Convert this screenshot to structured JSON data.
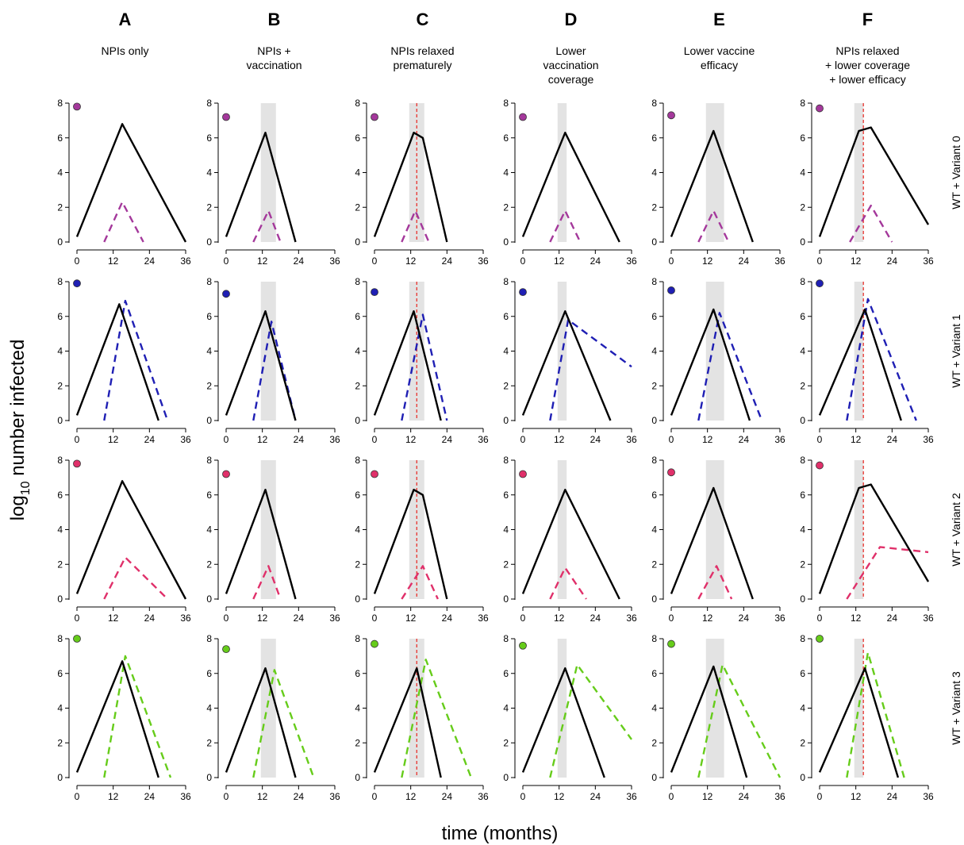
{
  "figure": {
    "ylabel_main": "log",
    "ylabel_sub": "10",
    "ylabel_rest": " number infected",
    "xlabel": "time (months)"
  },
  "columns": [
    {
      "letter": "A",
      "lines": [
        "NPIs only"
      ],
      "shade": false,
      "relax": false
    },
    {
      "letter": "B",
      "lines": [
        "NPIs +",
        "vaccination"
      ],
      "shade": [
        11.5,
        16.5
      ],
      "relax": false
    },
    {
      "letter": "C",
      "lines": [
        "NPIs relaxed",
        "prematurely"
      ],
      "shade": [
        11.5,
        16.5
      ],
      "relax": 14
    },
    {
      "letter": "D",
      "lines": [
        "Lower",
        "vaccination",
        "coverage"
      ],
      "shade": [
        11.5,
        14.5
      ],
      "relax": false
    },
    {
      "letter": "E",
      "lines": [
        "Lower vaccine",
        "efficacy"
      ],
      "shade": [
        11.5,
        17.5
      ],
      "relax": false
    },
    {
      "letter": "F",
      "lines": [
        "NPIs relaxed",
        "+ lower coverage",
        "+ lower efficacy"
      ],
      "shade": [
        11.5,
        14.5
      ],
      "relax": 14.5
    }
  ],
  "rows": [
    {
      "label": "WT + Variant 0",
      "color": "#a4389b"
    },
    {
      "label": "WT + Variant 1",
      "color": "#1f1fb4"
    },
    {
      "label": "WT + Variant 2",
      "color": "#e0306a"
    },
    {
      "label": "WT + Variant 3",
      "color": "#66cc1a"
    }
  ],
  "axes": {
    "x_ticks": [
      "0",
      "12",
      "24",
      "36"
    ],
    "y_ticks": [
      "0",
      "2",
      "4",
      "6",
      "8"
    ],
    "xlim": [
      0,
      36
    ],
    "ylim": [
      0,
      8
    ]
  },
  "chart_data": {
    "type": "line",
    "xlabel": "time (months)",
    "ylabel": "log10 number infected",
    "panels": [
      {
        "col": "A",
        "row": "WT + Variant 0",
        "marker_y": 7.8,
        "wt": [
          [
            0,
            0.3
          ],
          [
            15,
            6.8
          ],
          [
            36,
            0
          ]
        ],
        "variant": [
          [
            9,
            0
          ],
          [
            15,
            2.3
          ],
          [
            22,
            0
          ]
        ]
      },
      {
        "col": "B",
        "row": "WT + Variant 0",
        "marker_y": 7.2,
        "wt": [
          [
            0,
            0.3
          ],
          [
            13,
            6.3
          ],
          [
            23,
            0
          ]
        ],
        "variant": [
          [
            9,
            0
          ],
          [
            14,
            1.8
          ],
          [
            18,
            0
          ]
        ]
      },
      {
        "col": "C",
        "row": "WT + Variant 0",
        "marker_y": 7.2,
        "wt": [
          [
            0,
            0.3
          ],
          [
            13,
            6.3
          ],
          [
            16,
            6
          ],
          [
            24,
            0
          ]
        ],
        "variant": [
          [
            9,
            0
          ],
          [
            13.5,
            1.8
          ],
          [
            18,
            0
          ]
        ]
      },
      {
        "col": "D",
        "row": "WT + Variant 0",
        "marker_y": 7.2,
        "wt": [
          [
            0,
            0.3
          ],
          [
            14,
            6.3
          ],
          [
            32,
            0
          ]
        ],
        "variant": [
          [
            9,
            0
          ],
          [
            14,
            1.8
          ],
          [
            19,
            0
          ]
        ]
      },
      {
        "col": "E",
        "row": "WT + Variant 0",
        "marker_y": 7.3,
        "wt": [
          [
            0,
            0.3
          ],
          [
            14,
            6.4
          ],
          [
            27,
            0
          ]
        ],
        "variant": [
          [
            9,
            0
          ],
          [
            14,
            1.8
          ],
          [
            19,
            0
          ]
        ]
      },
      {
        "col": "F",
        "row": "WT + Variant 0",
        "marker_y": 7.7,
        "wt": [
          [
            0,
            0.3
          ],
          [
            13,
            6.4
          ],
          [
            17,
            6.6
          ],
          [
            36,
            1
          ]
        ],
        "variant": [
          [
            10,
            0
          ],
          [
            17,
            2.1
          ],
          [
            24,
            0
          ]
        ]
      },
      {
        "col": "A",
        "row": "WT + Variant 1",
        "marker_y": 7.9,
        "wt": [
          [
            0,
            0.3
          ],
          [
            14,
            6.7
          ],
          [
            27,
            0
          ]
        ],
        "variant": [
          [
            9,
            0
          ],
          [
            16,
            6.9
          ],
          [
            30,
            0
          ]
        ]
      },
      {
        "col": "B",
        "row": "WT + Variant 1",
        "marker_y": 7.3,
        "wt": [
          [
            0,
            0.3
          ],
          [
            13,
            6.3
          ],
          [
            23,
            0
          ]
        ],
        "variant": [
          [
            9,
            0
          ],
          [
            15,
            5.7
          ],
          [
            23,
            0
          ]
        ]
      },
      {
        "col": "C",
        "row": "WT + Variant 1",
        "marker_y": 7.4,
        "wt": [
          [
            0,
            0.3
          ],
          [
            13,
            6.3
          ],
          [
            22,
            0
          ]
        ],
        "variant": [
          [
            9,
            0
          ],
          [
            16,
            6.1
          ],
          [
            24,
            0
          ]
        ]
      },
      {
        "col": "D",
        "row": "WT + Variant 1",
        "marker_y": 7.4,
        "wt": [
          [
            0,
            0.3
          ],
          [
            14,
            6.3
          ],
          [
            29,
            0
          ]
        ],
        "variant": [
          [
            9,
            0
          ],
          [
            15,
            5.8
          ],
          [
            36,
            3.1
          ]
        ]
      },
      {
        "col": "E",
        "row": "WT + Variant 1",
        "marker_y": 7.5,
        "wt": [
          [
            0,
            0.3
          ],
          [
            14,
            6.4
          ],
          [
            26,
            0
          ]
        ],
        "variant": [
          [
            9,
            0
          ],
          [
            16,
            6.2
          ],
          [
            30,
            0
          ]
        ]
      },
      {
        "col": "F",
        "row": "WT + Variant 1",
        "marker_y": 7.9,
        "wt": [
          [
            0,
            0.3
          ],
          [
            15,
            6.4
          ],
          [
            27,
            0
          ]
        ],
        "variant": [
          [
            9,
            0
          ],
          [
            16,
            7
          ],
          [
            32,
            0
          ]
        ]
      },
      {
        "col": "A",
        "row": "WT + Variant 2",
        "marker_y": 7.8,
        "wt": [
          [
            0,
            0.3
          ],
          [
            15,
            6.8
          ],
          [
            36,
            0
          ]
        ],
        "variant": [
          [
            9,
            0
          ],
          [
            16,
            2.4
          ],
          [
            30,
            0
          ]
        ]
      },
      {
        "col": "B",
        "row": "WT + Variant 2",
        "marker_y": 7.2,
        "wt": [
          [
            0,
            0.3
          ],
          [
            13,
            6.3
          ],
          [
            23,
            0
          ]
        ],
        "variant": [
          [
            9,
            0
          ],
          [
            14,
            1.9
          ],
          [
            18,
            0
          ]
        ]
      },
      {
        "col": "C",
        "row": "WT + Variant 2",
        "marker_y": 7.2,
        "wt": [
          [
            0,
            0.3
          ],
          [
            13,
            6.3
          ],
          [
            16,
            6
          ],
          [
            24,
            0
          ]
        ],
        "variant": [
          [
            9,
            0
          ],
          [
            16,
            1.9
          ],
          [
            21,
            0
          ]
        ]
      },
      {
        "col": "D",
        "row": "WT + Variant 2",
        "marker_y": 7.2,
        "wt": [
          [
            0,
            0.3
          ],
          [
            14,
            6.3
          ],
          [
            32,
            0
          ]
        ],
        "variant": [
          [
            9,
            0
          ],
          [
            14,
            1.8
          ],
          [
            21,
            0
          ]
        ]
      },
      {
        "col": "E",
        "row": "WT + Variant 2",
        "marker_y": 7.3,
        "wt": [
          [
            0,
            0.3
          ],
          [
            14,
            6.4
          ],
          [
            27,
            0
          ]
        ],
        "variant": [
          [
            9,
            0
          ],
          [
            15,
            1.9
          ],
          [
            20,
            0
          ]
        ]
      },
      {
        "col": "F",
        "row": "WT + Variant 2",
        "marker_y": 7.7,
        "wt": [
          [
            0,
            0.3
          ],
          [
            13,
            6.4
          ],
          [
            17,
            6.6
          ],
          [
            36,
            1
          ]
        ],
        "variant": [
          [
            9,
            0
          ],
          [
            20,
            3
          ],
          [
            36,
            2.7
          ]
        ]
      },
      {
        "col": "A",
        "row": "WT + Variant 3",
        "marker_y": 8,
        "wt": [
          [
            0,
            0.3
          ],
          [
            15,
            6.7
          ],
          [
            27,
            0
          ]
        ],
        "variant": [
          [
            9,
            0
          ],
          [
            16,
            7
          ],
          [
            31,
            0
          ]
        ]
      },
      {
        "col": "B",
        "row": "WT + Variant 3",
        "marker_y": 7.4,
        "wt": [
          [
            0,
            0.3
          ],
          [
            13,
            6.3
          ],
          [
            23,
            0
          ]
        ],
        "variant": [
          [
            9,
            0
          ],
          [
            16,
            6.2
          ],
          [
            29,
            0
          ]
        ]
      },
      {
        "col": "C",
        "row": "WT + Variant 3",
        "marker_y": 7.7,
        "wt": [
          [
            0,
            0.3
          ],
          [
            14,
            6.3
          ],
          [
            22,
            0
          ]
        ],
        "variant": [
          [
            9,
            0
          ],
          [
            17,
            6.8
          ],
          [
            32,
            0
          ]
        ]
      },
      {
        "col": "D",
        "row": "WT + Variant 3",
        "marker_y": 7.6,
        "wt": [
          [
            0,
            0.3
          ],
          [
            14,
            6.3
          ],
          [
            27,
            0
          ]
        ],
        "variant": [
          [
            9,
            0
          ],
          [
            18,
            6.5
          ],
          [
            36,
            2.2
          ]
        ]
      },
      {
        "col": "E",
        "row": "WT + Variant 3",
        "marker_y": 7.7,
        "wt": [
          [
            0,
            0.3
          ],
          [
            14,
            6.4
          ],
          [
            25,
            0
          ]
        ],
        "variant": [
          [
            9,
            0
          ],
          [
            17,
            6.5
          ],
          [
            36,
            0
          ]
        ]
      },
      {
        "col": "F",
        "row": "WT + Variant 3",
        "marker_y": 8,
        "wt": [
          [
            0,
            0.3
          ],
          [
            15,
            6.3
          ],
          [
            26,
            0
          ]
        ],
        "variant": [
          [
            9,
            0
          ],
          [
            16,
            7.2
          ],
          [
            28,
            0
          ]
        ]
      }
    ]
  }
}
